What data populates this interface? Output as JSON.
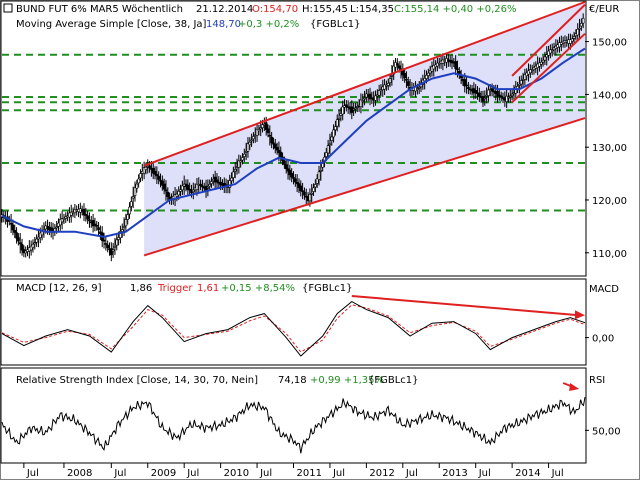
{
  "colors": {
    "price": "#000000",
    "ma": "#1f3fbf",
    "channel": "#e02020",
    "channel_fill": "#dde0f8",
    "hline": "#1f8f1f",
    "macd": "#000000",
    "trigger": "#e02020",
    "rsi": "#000000",
    "up": "#1f8f1f",
    "down": "#e02020",
    "arrow": "#e02020"
  },
  "chart_data": [
    {
      "type": "line",
      "panel": "price",
      "legend": {
        "symbol": "BUND FUT 6% MAR5 Wöchentlich",
        "date": "21.12.2014",
        "open": "O:154,70",
        "high": "H:155,45",
        "low": "L:154,35",
        "close_change": "C:155,14 +0,40 +0,26%",
        "ma_label": "Moving Average Simple [Close, 38, Ja]",
        "ma_value": "148,70",
        "ma_change": "+0,3 +0,2%",
        "ma_symbol": "{FGBLc1}"
      },
      "unit_label": "€/EUR",
      "yticks": [
        "110,00",
        "120,00",
        "130,00",
        "140,00",
        "150,00"
      ],
      "ytick_values": [
        110,
        120,
        130,
        140,
        150
      ],
      "ylim": [
        105.6,
        157.5
      ],
      "xlim": [
        2007.0,
        2015.0
      ],
      "price_path": [
        [
          2007.0,
          117
        ],
        [
          2007.1,
          116
        ],
        [
          2007.2,
          113
        ],
        [
          2007.3,
          110
        ],
        [
          2007.4,
          111
        ],
        [
          2007.5,
          113
        ],
        [
          2007.6,
          115
        ],
        [
          2007.7,
          114
        ],
        [
          2007.8,
          116
        ],
        [
          2007.9,
          117
        ],
        [
          2008.0,
          118
        ],
        [
          2008.1,
          118
        ],
        [
          2008.2,
          116
        ],
        [
          2008.3,
          115
        ],
        [
          2008.4,
          112
        ],
        [
          2008.5,
          110
        ],
        [
          2008.6,
          113
        ],
        [
          2008.7,
          116
        ],
        [
          2008.8,
          121
        ],
        [
          2008.9,
          125
        ],
        [
          2009.0,
          126.5
        ],
        [
          2009.1,
          125
        ],
        [
          2009.2,
          123
        ],
        [
          2009.3,
          120
        ],
        [
          2009.4,
          121
        ],
        [
          2009.5,
          123
        ],
        [
          2009.6,
          121.5
        ],
        [
          2009.7,
          123
        ],
        [
          2009.8,
          122
        ],
        [
          2009.9,
          124
        ],
        [
          2010.0,
          123
        ],
        [
          2010.1,
          122.5
        ],
        [
          2010.2,
          126
        ],
        [
          2010.3,
          128
        ],
        [
          2010.4,
          131
        ],
        [
          2010.5,
          133
        ],
        [
          2010.6,
          134.5
        ],
        [
          2010.7,
          131
        ],
        [
          2010.8,
          129
        ],
        [
          2010.9,
          126
        ],
        [
          2011.0,
          124
        ],
        [
          2011.1,
          122
        ],
        [
          2011.2,
          120
        ],
        [
          2011.3,
          123
        ],
        [
          2011.4,
          127
        ],
        [
          2011.5,
          131
        ],
        [
          2011.6,
          135
        ],
        [
          2011.7,
          138
        ],
        [
          2011.8,
          137
        ],
        [
          2011.9,
          138
        ],
        [
          2012.0,
          140
        ],
        [
          2012.1,
          139
        ],
        [
          2012.2,
          141
        ],
        [
          2012.3,
          142
        ],
        [
          2012.4,
          146
        ],
        [
          2012.5,
          144
        ],
        [
          2012.6,
          141
        ],
        [
          2012.7,
          141
        ],
        [
          2012.8,
          143
        ],
        [
          2012.9,
          145
        ],
        [
          2013.0,
          146
        ],
        [
          2013.1,
          146.5
        ],
        [
          2013.2,
          146
        ],
        [
          2013.3,
          143
        ],
        [
          2013.4,
          141
        ],
        [
          2013.5,
          140.5
        ],
        [
          2013.6,
          139
        ],
        [
          2013.7,
          141
        ],
        [
          2013.8,
          140
        ],
        [
          2013.9,
          139
        ],
        [
          2014.0,
          140
        ],
        [
          2014.1,
          142
        ],
        [
          2014.2,
          144
        ],
        [
          2014.3,
          145
        ],
        [
          2014.4,
          146
        ],
        [
          2014.5,
          148
        ],
        [
          2014.6,
          149
        ],
        [
          2014.7,
          150
        ],
        [
          2014.8,
          150
        ],
        [
          2014.9,
          152
        ],
        [
          2015.0,
          155
        ]
      ],
      "ma_path": [
        [
          2007.0,
          117
        ],
        [
          2007.3,
          115
        ],
        [
          2007.6,
          114
        ],
        [
          2008.0,
          114
        ],
        [
          2008.4,
          113
        ],
        [
          2008.7,
          114
        ],
        [
          2009.0,
          117
        ],
        [
          2009.3,
          120
        ],
        [
          2009.6,
          121
        ],
        [
          2009.9,
          122
        ],
        [
          2010.2,
          123
        ],
        [
          2010.5,
          126
        ],
        [
          2010.8,
          128
        ],
        [
          2011.1,
          127
        ],
        [
          2011.4,
          127
        ],
        [
          2011.7,
          131
        ],
        [
          2012.0,
          135
        ],
        [
          2012.3,
          138
        ],
        [
          2012.6,
          141
        ],
        [
          2012.9,
          143
        ],
        [
          2013.2,
          144
        ],
        [
          2013.5,
          143
        ],
        [
          2013.8,
          141
        ],
        [
          2014.1,
          141
        ],
        [
          2014.4,
          143
        ],
        [
          2014.7,
          146
        ],
        [
          2015.0,
          148.7
        ]
      ],
      "channel": {
        "upper": [
          [
            2008.95,
            126.5
          ],
          [
            2015.0,
            157.5
          ]
        ],
        "lower": [
          [
            2008.95,
            109.5
          ],
          [
            2015.0,
            135.5
          ]
        ],
        "small_upper": [
          [
            2014.0,
            143.5
          ],
          [
            2015.0,
            157.0
          ]
        ],
        "small_lower": [
          [
            2014.0,
            138.5
          ],
          [
            2015.0,
            151.5
          ]
        ]
      },
      "hlines": [
        147.5,
        139.5,
        138.5,
        137,
        127,
        118
      ]
    },
    {
      "type": "line",
      "panel": "macd",
      "legend": {
        "label": "MACD [12, 26, 9]",
        "value": "1,86",
        "trigger_label": "Trigger",
        "trigger_value": "1,61",
        "trigger_change": "+0,15 +8,54%",
        "symbol": "{FGBLc1}"
      },
      "unit_label": "MACD",
      "yticks": [
        "0,00"
      ],
      "ytick_values": [
        0
      ],
      "ylim": [
        -3.3,
        5.2
      ],
      "xlim": [
        2007.0,
        2015.0
      ],
      "macd_path": [
        [
          2007.0,
          0.5
        ],
        [
          2007.3,
          -1
        ],
        [
          2007.6,
          0.2
        ],
        [
          2007.9,
          1
        ],
        [
          2008.2,
          0.2
        ],
        [
          2008.5,
          -1.8
        ],
        [
          2008.8,
          2
        ],
        [
          2009.0,
          4
        ],
        [
          2009.2,
          2.5
        ],
        [
          2009.5,
          -0.5
        ],
        [
          2009.8,
          0.5
        ],
        [
          2010.1,
          1
        ],
        [
          2010.4,
          2.5
        ],
        [
          2010.6,
          3
        ],
        [
          2010.9,
          0
        ],
        [
          2011.1,
          -2.3
        ],
        [
          2011.4,
          0.2
        ],
        [
          2011.6,
          3
        ],
        [
          2011.8,
          4.5
        ],
        [
          2012.0,
          3.5
        ],
        [
          2012.3,
          2.5
        ],
        [
          2012.6,
          0.2
        ],
        [
          2012.9,
          1.8
        ],
        [
          2013.2,
          2
        ],
        [
          2013.5,
          0.5
        ],
        [
          2013.7,
          -1.5
        ],
        [
          2014.0,
          0
        ],
        [
          2014.3,
          1
        ],
        [
          2014.6,
          2
        ],
        [
          2014.8,
          2.5
        ],
        [
          2015.0,
          1.86
        ]
      ],
      "trigger_path": [
        [
          2007.0,
          0.6
        ],
        [
          2007.3,
          -0.6
        ],
        [
          2007.6,
          0
        ],
        [
          2007.9,
          0.8
        ],
        [
          2008.2,
          0.4
        ],
        [
          2008.5,
          -1.4
        ],
        [
          2008.8,
          1.4
        ],
        [
          2009.0,
          3.5
        ],
        [
          2009.2,
          2.8
        ],
        [
          2009.5,
          0
        ],
        [
          2009.8,
          0.4
        ],
        [
          2010.1,
          0.8
        ],
        [
          2010.4,
          2.1
        ],
        [
          2010.6,
          2.7
        ],
        [
          2010.9,
          0.5
        ],
        [
          2011.1,
          -1.8
        ],
        [
          2011.4,
          -0.3
        ],
        [
          2011.6,
          2.4
        ],
        [
          2011.8,
          4.1
        ],
        [
          2012.0,
          3.7
        ],
        [
          2012.3,
          2.7
        ],
        [
          2012.6,
          0.6
        ],
        [
          2012.9,
          1.5
        ],
        [
          2013.2,
          1.9
        ],
        [
          2013.5,
          0.8
        ],
        [
          2013.7,
          -1.1
        ],
        [
          2014.0,
          -0.2
        ],
        [
          2014.3,
          0.8
        ],
        [
          2014.6,
          1.8
        ],
        [
          2014.8,
          2.3
        ],
        [
          2015.0,
          1.61
        ]
      ],
      "trend": [
        [
          2011.8,
          5.2
        ],
        [
          2015.0,
          2.8
        ]
      ]
    },
    {
      "type": "line",
      "panel": "rsi",
      "legend": {
        "label": "Relative Strength Index [Close, 14, 30, 70, Nein]",
        "value": "74,18",
        "change": "+0,99 +1,35%",
        "symbol": "{FGBLc1}"
      },
      "unit_label": "RSI",
      "yticks": [
        "50,00"
      ],
      "ytick_values": [
        50
      ],
      "ylim": [
        25,
        85
      ],
      "xlim": [
        2007.0,
        2015.0
      ],
      "rsi_path": [
        [
          2007.0,
          55
        ],
        [
          2007.2,
          40
        ],
        [
          2007.4,
          52
        ],
        [
          2007.6,
          48
        ],
        [
          2007.8,
          62
        ],
        [
          2008.0,
          58
        ],
        [
          2008.2,
          48
        ],
        [
          2008.4,
          36
        ],
        [
          2008.6,
          55
        ],
        [
          2008.8,
          68
        ],
        [
          2009.0,
          72
        ],
        [
          2009.2,
          52
        ],
        [
          2009.4,
          44
        ],
        [
          2009.6,
          55
        ],
        [
          2009.8,
          52
        ],
        [
          2010.0,
          54
        ],
        [
          2010.2,
          60
        ],
        [
          2010.4,
          70
        ],
        [
          2010.6,
          68
        ],
        [
          2010.8,
          48
        ],
        [
          2011.0,
          42
        ],
        [
          2011.1,
          36
        ],
        [
          2011.3,
          52
        ],
        [
          2011.5,
          62
        ],
        [
          2011.7,
          72
        ],
        [
          2011.9,
          64
        ],
        [
          2012.1,
          60
        ],
        [
          2012.3,
          66
        ],
        [
          2012.5,
          54
        ],
        [
          2012.7,
          58
        ],
        [
          2012.9,
          62
        ],
        [
          2013.1,
          60
        ],
        [
          2013.3,
          54
        ],
        [
          2013.5,
          48
        ],
        [
          2013.7,
          40
        ],
        [
          2013.9,
          52
        ],
        [
          2014.1,
          56
        ],
        [
          2014.3,
          62
        ],
        [
          2014.5,
          66
        ],
        [
          2014.7,
          72
        ],
        [
          2014.85,
          64
        ],
        [
          2015.0,
          74.18
        ]
      ]
    }
  ],
  "time_axis": {
    "labels": [
      {
        "x": 2007.3,
        "text": "Jul"
      },
      {
        "x": 2007.85,
        "text": "2008"
      },
      {
        "x": 2008.5,
        "text": "Jul"
      },
      {
        "x": 2009.0,
        "text": "2009"
      },
      {
        "x": 2009.5,
        "text": "Jul"
      },
      {
        "x": 2010.0,
        "text": "2010"
      },
      {
        "x": 2010.5,
        "text": "Jul"
      },
      {
        "x": 2011.0,
        "text": "2011"
      },
      {
        "x": 2011.5,
        "text": "Jul"
      },
      {
        "x": 2012.0,
        "text": "2012"
      },
      {
        "x": 2012.5,
        "text": "Jul"
      },
      {
        "x": 2013.0,
        "text": "2013"
      },
      {
        "x": 2013.5,
        "text": "Jul"
      },
      {
        "x": 2014.0,
        "text": "2014"
      },
      {
        "x": 2014.5,
        "text": "Jul"
      }
    ]
  }
}
